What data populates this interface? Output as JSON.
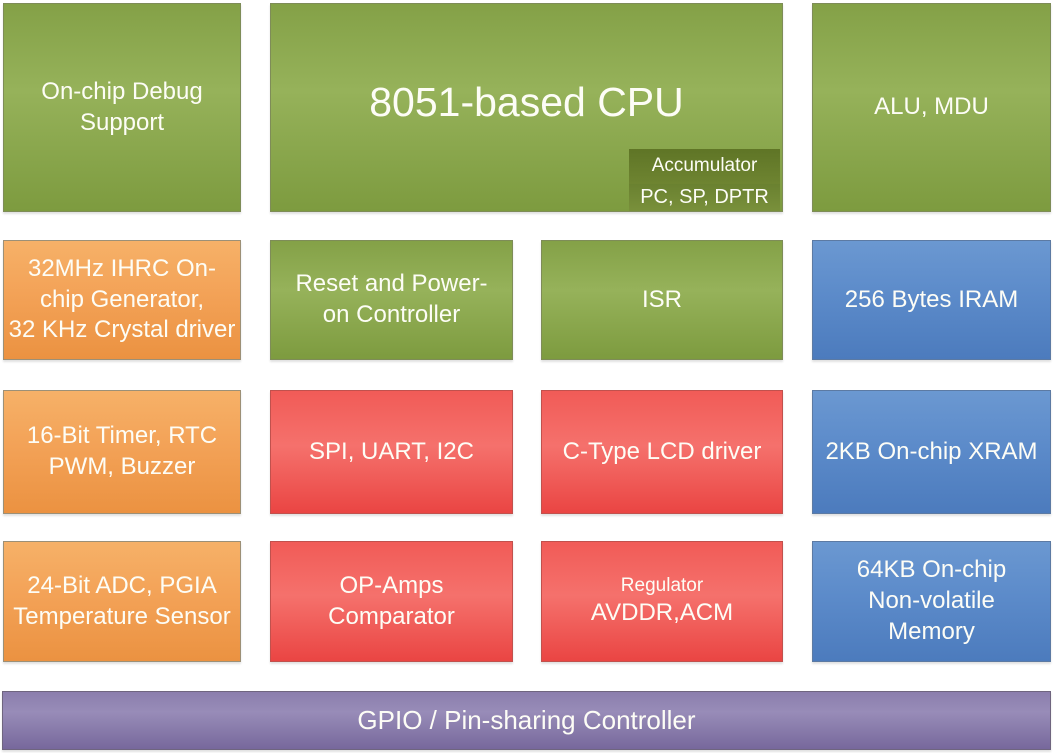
{
  "colors": {
    "green": {
      "top": "#84a147",
      "mid": "#96b25a",
      "bottom": "#7d9b3f",
      "border": "#7e8c58"
    },
    "orange": {
      "top": "#f6b168",
      "mid": "#f3a257",
      "bottom": "#eb9241",
      "border": "#9c9077"
    },
    "red": {
      "top": "#f15b57",
      "mid": "#f5716c",
      "bottom": "#ea4543",
      "border": "#c1514d"
    },
    "blue": {
      "top": "#6b98d1",
      "mid": "#5c8bca",
      "bottom": "#4c7bbd",
      "border": "#5c7aa3"
    },
    "purple": {
      "top": "#8b7ead",
      "mid": "#988cb8",
      "bottom": "#77689c",
      "border": "#6f657f"
    },
    "olive1": {
      "top": "#5f7526",
      "bottom": "#6e8431",
      "border": "#b2c08e"
    },
    "olive2": {
      "top": "#6a8130",
      "bottom": "#79903b",
      "border": "#b2c08e"
    }
  },
  "cpu": {
    "title": "8051-based CPU",
    "sub_accumulator": "Accumulator",
    "sub_registers": "PC, SP, DPTR"
  },
  "blocks": [
    {
      "id": "debug",
      "color": "green",
      "lines": [
        "On-chip Debug",
        "Support"
      ]
    },
    {
      "id": "alu",
      "color": "green",
      "lines": [
        "ALU, MDU"
      ]
    },
    {
      "id": "clock",
      "color": "orange",
      "lines": [
        "32MHz IHRC On-",
        "chip Generator,",
        "32 KHz Crystal driver"
      ]
    },
    {
      "id": "reset",
      "color": "green",
      "lines": [
        "Reset and Power-",
        "on Controller"
      ]
    },
    {
      "id": "isr",
      "color": "green",
      "lines": [
        "ISR"
      ]
    },
    {
      "id": "iram",
      "color": "blue",
      "lines": [
        "256 Bytes IRAM"
      ]
    },
    {
      "id": "timer",
      "color": "orange",
      "lines": [
        "16-Bit Timer, RTC",
        "PWM, Buzzer"
      ]
    },
    {
      "id": "serial",
      "color": "red",
      "lines": [
        "SPI, UART, I2C"
      ]
    },
    {
      "id": "lcd",
      "color": "red",
      "lines": [
        "C-Type LCD driver"
      ]
    },
    {
      "id": "xram",
      "color": "blue",
      "lines": [
        "2KB On-chip XRAM"
      ]
    },
    {
      "id": "adc",
      "color": "orange",
      "lines": [
        "24-Bit ADC, PGIA",
        "Temperature Sensor"
      ]
    },
    {
      "id": "opamp",
      "color": "red",
      "lines": [
        "OP-Amps",
        "Comparator"
      ]
    },
    {
      "id": "regulator",
      "color": "red",
      "lines": [
        "Regulator",
        "AVDDR,ACM"
      ]
    },
    {
      "id": "nvm",
      "color": "blue",
      "lines": [
        "64KB On-chip",
        "Non-volatile",
        "Memory"
      ]
    }
  ],
  "gpio_bar": {
    "label": "GPIO / Pin-sharing Controller"
  }
}
